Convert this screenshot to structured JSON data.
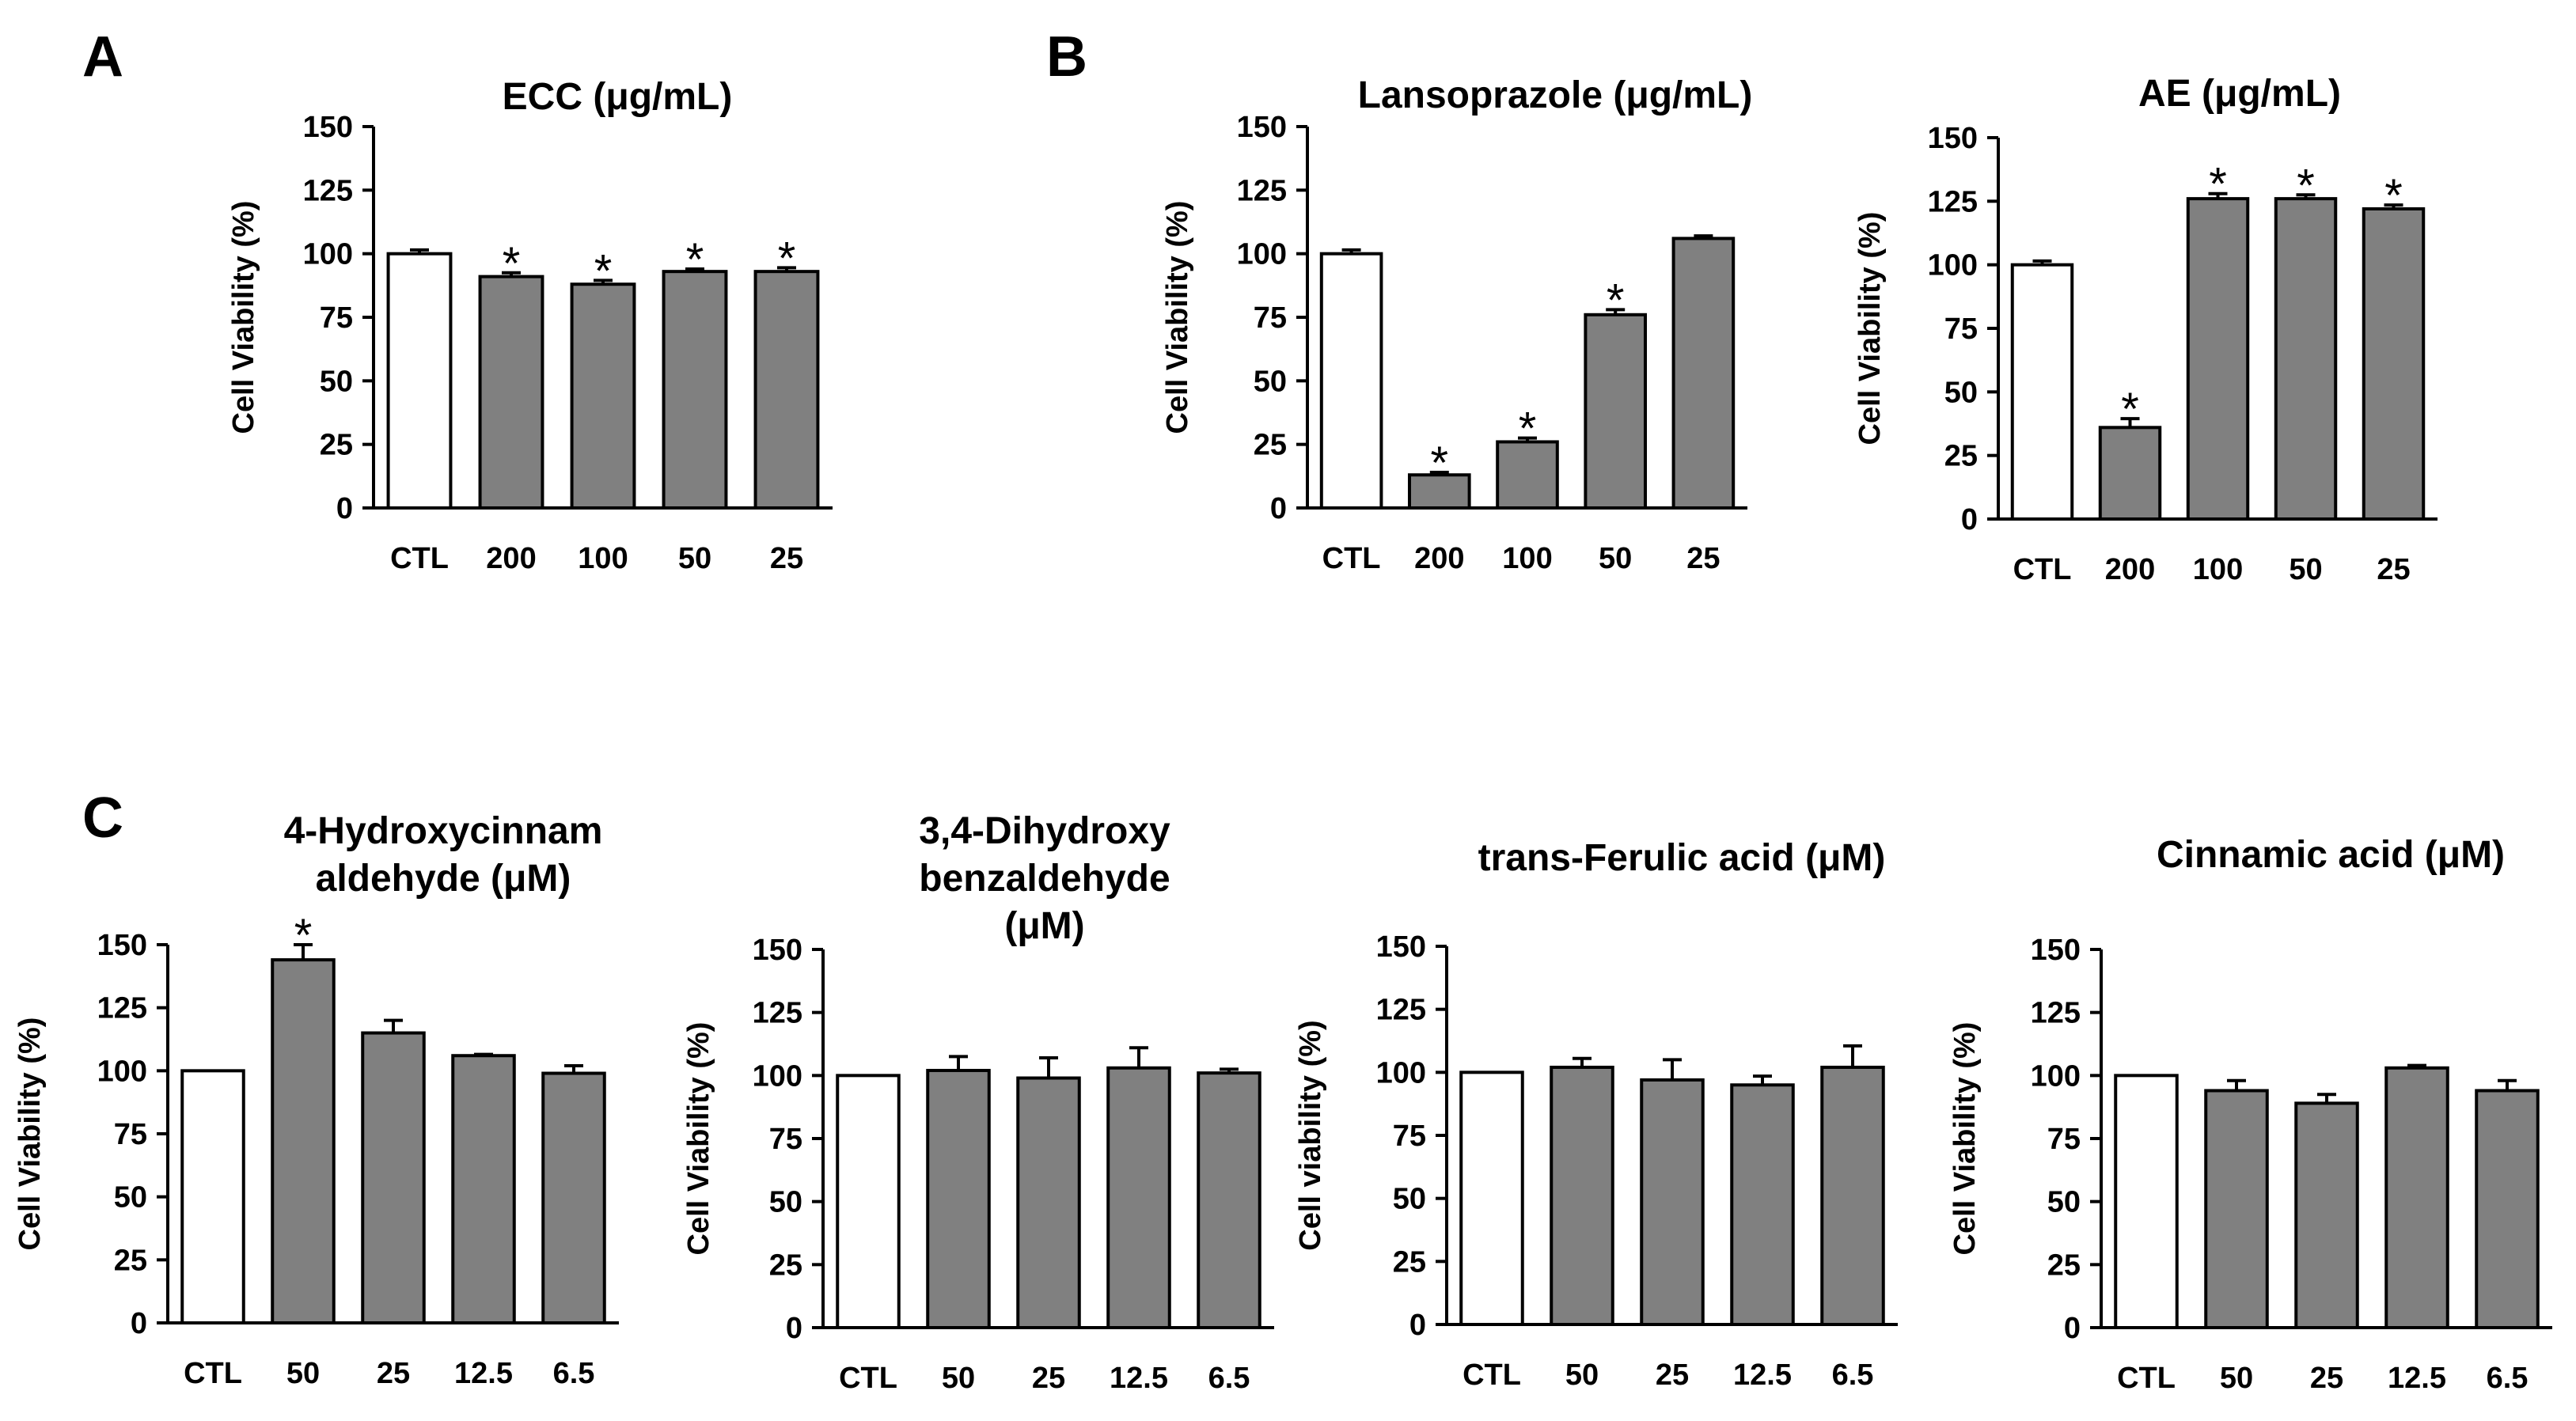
{
  "colors": {
    "control_bar": "#ffffff",
    "treatment_bar": "#808080",
    "axis": "#000000"
  },
  "panels": [
    "A",
    "B",
    "C"
  ],
  "chart_data": [
    {
      "panel": "A",
      "type": "bar",
      "title_lines": [
        "ECC (μg/mL)"
      ],
      "ylabel": "Cell Viability (%)",
      "xlabel": "",
      "ylim": [
        0,
        150
      ],
      "yticks": [
        0,
        25,
        50,
        75,
        100,
        125,
        150
      ],
      "categories": [
        "CTL",
        "200",
        "100",
        "50",
        "25"
      ],
      "values": [
        100,
        91,
        88,
        93,
        93
      ],
      "errors": [
        1.5,
        1.5,
        1.5,
        1,
        1.5
      ],
      "significant": [
        false,
        true,
        true,
        true,
        true
      ],
      "significance_mark": "*"
    },
    {
      "panel": "B",
      "type": "bar",
      "title_lines": [
        "Lansoprazole (μg/mL)"
      ],
      "ylabel": "Cell Viability (%)",
      "xlabel": "",
      "ylim": [
        0,
        150
      ],
      "yticks": [
        0,
        25,
        50,
        75,
        100,
        125,
        150
      ],
      "categories": [
        "CTL",
        "200",
        "100",
        "50",
        "25"
      ],
      "values": [
        100,
        13,
        26,
        76,
        106
      ],
      "errors": [
        1.5,
        1,
        1.5,
        2,
        1
      ],
      "significant": [
        false,
        true,
        true,
        true,
        false
      ],
      "significance_mark": "*"
    },
    {
      "panel": "B2",
      "type": "bar",
      "title_lines": [
        "AE (μg/mL)"
      ],
      "ylabel": "Cell Viability (%)",
      "xlabel": "",
      "ylim": [
        0,
        150
      ],
      "yticks": [
        0,
        25,
        50,
        75,
        100,
        125,
        150
      ],
      "categories": [
        "CTL",
        "200",
        "100",
        "50",
        "25"
      ],
      "values": [
        100,
        36,
        126,
        126,
        122
      ],
      "errors": [
        1.5,
        3.5,
        2,
        1.5,
        1.5
      ],
      "significant": [
        false,
        true,
        true,
        true,
        true
      ],
      "significance_mark": "*"
    },
    {
      "panel": "C",
      "type": "bar",
      "title_lines": [
        "4-Hydroxycinnam",
        "aldehyde (μM)"
      ],
      "ylabel": "Cell Viability (%)",
      "xlabel": "",
      "ylim": [
        0,
        150
      ],
      "yticks": [
        0,
        25,
        50,
        75,
        100,
        125,
        150
      ],
      "categories": [
        "CTL",
        "50",
        "25",
        "12.5",
        "6.5"
      ],
      "values": [
        100,
        144,
        115,
        106,
        99
      ],
      "errors": [
        0,
        6,
        5,
        0.5,
        3
      ],
      "significant": [
        false,
        true,
        false,
        false,
        false
      ],
      "significance_mark": "*"
    },
    {
      "panel": "C2",
      "type": "bar",
      "title_lines": [
        "3,4-Dihydroxy",
        "benzaldehyde",
        "(μM)"
      ],
      "ylabel": "Cell Viability (%)",
      "xlabel": "",
      "ylim": [
        0,
        150
      ],
      "yticks": [
        0,
        25,
        50,
        75,
        100,
        125,
        150
      ],
      "categories": [
        "CTL",
        "50",
        "25",
        "12.5",
        "6.5"
      ],
      "values": [
        100,
        102,
        99,
        103,
        101
      ],
      "errors": [
        0,
        5.5,
        8,
        8,
        1.5
      ],
      "significant": [
        false,
        false,
        false,
        false,
        false
      ],
      "significance_mark": "*"
    },
    {
      "panel": "C3",
      "type": "bar",
      "title_lines": [
        "trans-Ferulic acid (μM)"
      ],
      "ylabel": "Cell viability (%)",
      "xlabel": "",
      "ylim": [
        0,
        150
      ],
      "yticks": [
        0,
        25,
        50,
        75,
        100,
        125,
        150
      ],
      "categories": [
        "CTL",
        "50",
        "25",
        "12.5",
        "6.5"
      ],
      "values": [
        100,
        102,
        97,
        95,
        102
      ],
      "errors": [
        0,
        3.5,
        8,
        3.5,
        8.5
      ],
      "significant": [
        false,
        false,
        false,
        false,
        false
      ],
      "significance_mark": "*"
    },
    {
      "panel": "C4",
      "type": "bar",
      "title_lines": [
        "Cinnamic acid (μM)"
      ],
      "ylabel": "Cell Viability (%)",
      "xlabel": "",
      "ylim": [
        0,
        150
      ],
      "yticks": [
        0,
        25,
        50,
        75,
        100,
        125,
        150
      ],
      "categories": [
        "CTL",
        "50",
        "25",
        "12.5",
        "6.5"
      ],
      "values": [
        100,
        94,
        89,
        103,
        94
      ],
      "errors": [
        0,
        4,
        3.5,
        1,
        4
      ],
      "significant": [
        false,
        false,
        false,
        false,
        false
      ],
      "significance_mark": "*"
    }
  ]
}
